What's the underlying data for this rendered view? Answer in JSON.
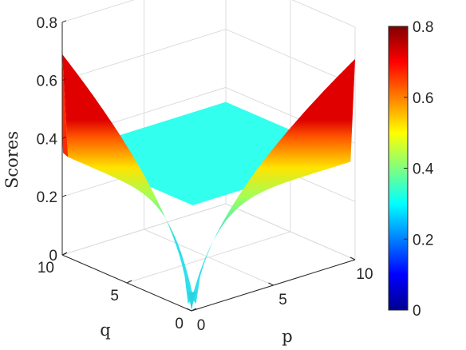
{
  "chart_data": {
    "type": "surface",
    "xlabel": "p",
    "ylabel": "q",
    "zlabel": "Scores",
    "xlim": [
      0,
      10
    ],
    "ylim": [
      0,
      10
    ],
    "zlim": [
      0,
      0.8
    ],
    "xticks": [
      "0",
      "5",
      "10"
    ],
    "yticks": [
      "0",
      "5",
      "10"
    ],
    "zticks": [
      "0",
      "0.2",
      "0.4",
      "0.6",
      "0.8"
    ],
    "grid": true,
    "colormap": "jet",
    "colorbar": {
      "ticks": [
        "0",
        "0.2",
        "0.4",
        "0.6",
        "0.8"
      ],
      "range": [
        0,
        0.8
      ],
      "placement": "right"
    },
    "surface": {
      "plateau_value": 0.35,
      "edge_value_at_far_end": 0.69,
      "edge_value_at_corner": 0.0,
      "description_of_shape": "V-shaped ridge along p=0 and q=0 edges"
    },
    "colors": {
      "plateau": "#33ffee",
      "low": "#00008f",
      "high": "#800000"
    }
  }
}
